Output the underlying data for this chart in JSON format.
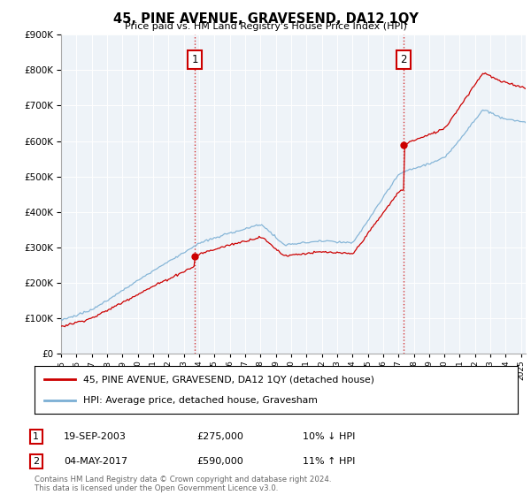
{
  "title": "45, PINE AVENUE, GRAVESEND, DA12 1QY",
  "subtitle": "Price paid vs. HM Land Registry's House Price Index (HPI)",
  "legend_line1": "45, PINE AVENUE, GRAVESEND, DA12 1QY (detached house)",
  "legend_line2": "HPI: Average price, detached house, Gravesham",
  "sale1_date": "19-SEP-2003",
  "sale1_price": "£275,000",
  "sale1_hpi": "10% ↓ HPI",
  "sale1_year": 2003.72,
  "sale1_value": 275000,
  "sale2_date": "04-MAY-2017",
  "sale2_price": "£590,000",
  "sale2_hpi": "11% ↑ HPI",
  "sale2_year": 2017.34,
  "sale2_value": 590000,
  "hpi_color": "#7bafd4",
  "price_color": "#cc0000",
  "vline_color": "#cc0000",
  "background_color": "#ffffff",
  "plot_bg_color": "#eef3f8",
  "grid_color": "#ffffff",
  "ylim": [
    0,
    900000
  ],
  "xlim_start": 1995,
  "xlim_end": 2025.3,
  "footnote": "Contains HM Land Registry data © Crown copyright and database right 2024.\nThis data is licensed under the Open Government Licence v3.0."
}
